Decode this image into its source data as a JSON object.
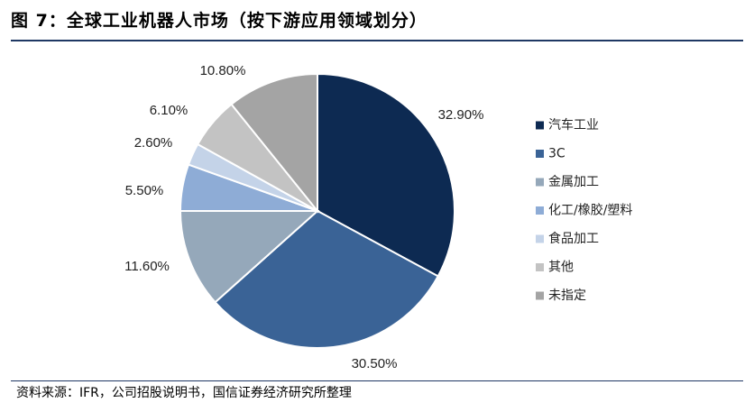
{
  "header": {
    "title": "图 7：全球工业机器人市场（按下游应用领域划分）"
  },
  "footer": {
    "source": "资料来源：IFR，公司招股说明书，国信证券经济研究所整理"
  },
  "chart_data": {
    "type": "pie",
    "categories": [
      "汽车工业",
      "3C",
      "金属加工",
      "化工/橡胶/塑料",
      "食品加工",
      "其他",
      "未指定"
    ],
    "values": [
      32.9,
      30.5,
      11.6,
      5.5,
      2.6,
      6.1,
      10.8
    ],
    "labels": [
      "32.90%",
      "30.50%",
      "11.60%",
      "5.50%",
      "2.60%",
      "6.10%",
      "10.80%"
    ],
    "colors": [
      "#0d2a52",
      "#3a6396",
      "#95a8ba",
      "#8eacd6",
      "#c4d3e8",
      "#c3c3c3",
      "#a4a4a4"
    ],
    "legend_position": "right"
  }
}
